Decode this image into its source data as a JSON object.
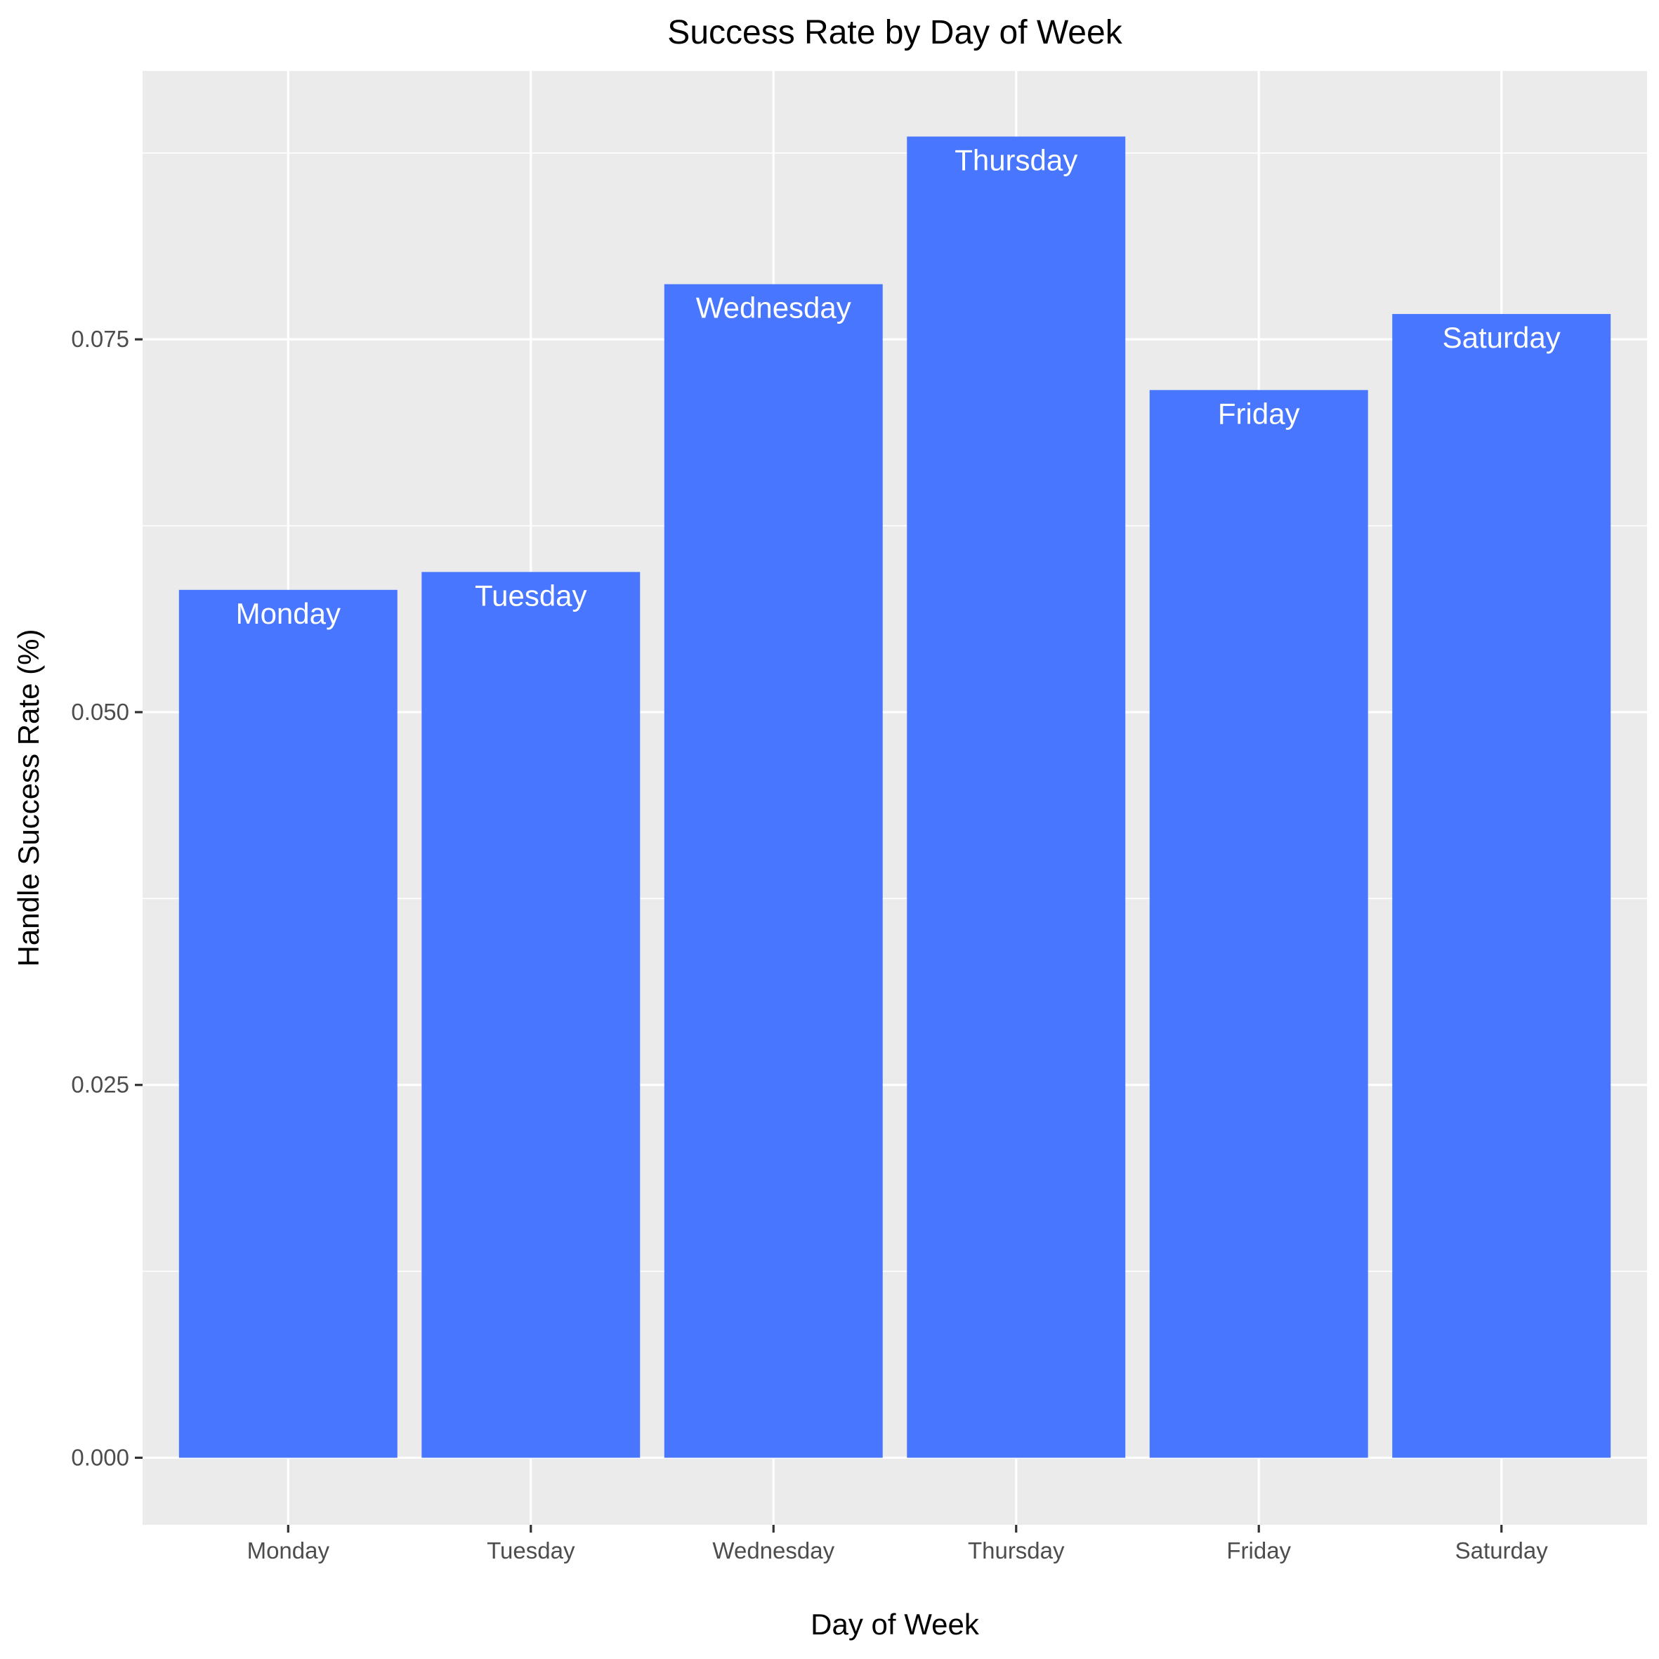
{
  "chart_data": {
    "type": "bar",
    "title": "Success Rate by Day of Week",
    "xlabel": "Day of Week",
    "ylabel": "Handle Success Rate (%)",
    "categories": [
      "Monday",
      "Tuesday",
      "Wednesday",
      "Thursday",
      "Friday",
      "Saturday"
    ],
    "values": [
      0.0582,
      0.0594,
      0.0787,
      0.0886,
      0.0716,
      0.0767
    ],
    "bar_labels": [
      "Monday",
      "Tuesday",
      "Wednesday",
      "Thursday",
      "Friday",
      "Saturday"
    ],
    "yticks": [
      0.0,
      0.025,
      0.05,
      0.075
    ],
    "ytick_labels": [
      "0.000",
      "0.025",
      "0.050",
      "0.075"
    ],
    "ylim": [
      -0.0045,
      0.093
    ],
    "grid": true,
    "legend": "none",
    "colors": {
      "bar": "#4876FF",
      "panel": "#EBEBEB",
      "grid": "#FFFFFF",
      "bar_label": "#FFFFFF"
    }
  }
}
